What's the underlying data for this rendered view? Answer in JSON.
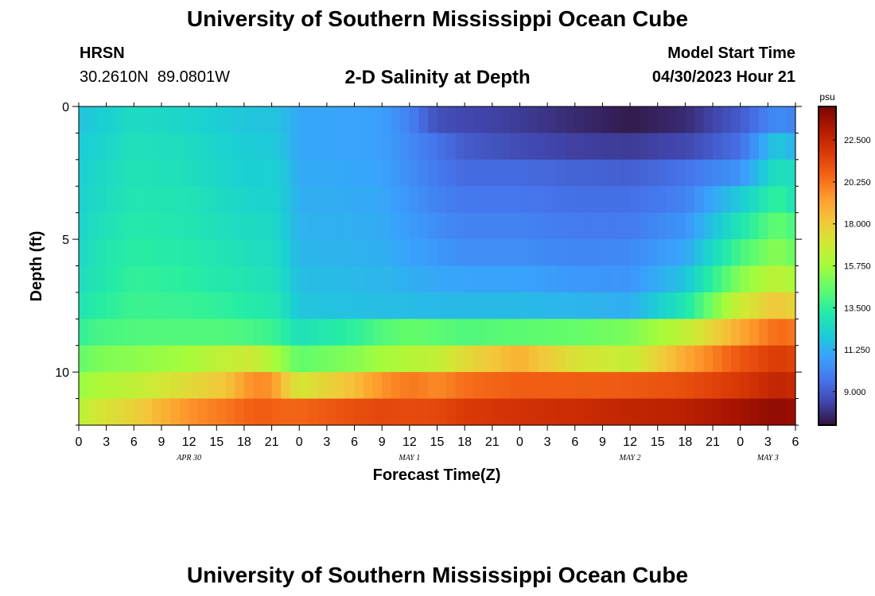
{
  "header": {
    "title": "University of Southern Mississippi Ocean Cube",
    "station": "HRSN",
    "coords": "30.2610N  89.0801W",
    "subtitle": "2-D Salinity at Depth",
    "model_start_label": "Model Start Time",
    "model_start_value": "04/30/2023 Hour 21"
  },
  "footer": {
    "title": "University of Southern Mississippi Ocean Cube"
  },
  "colors": {
    "colormap": [
      "#30123b",
      "#4145ab",
      "#4675ed",
      "#39a2fc",
      "#1bcfd4",
      "#24eca6",
      "#61fc6c",
      "#a4fc3b",
      "#d1e834",
      "#f3c63a",
      "#fe9b2d",
      "#f36315",
      "#d93806",
      "#b11901",
      "#7a0402"
    ]
  },
  "chart_data": {
    "type": "heatmap",
    "title": "2-D Salinity at Depth",
    "xlabel": "Forecast Time(Z)",
    "ylabel": "Depth (ft)",
    "y_range": [
      0,
      12
    ],
    "y_ticks": [
      "0",
      "5",
      "10"
    ],
    "y_tick_values": [
      0,
      5,
      10
    ],
    "x_hours": [
      0,
      78
    ],
    "x_tick_labels": [
      "0",
      "3",
      "6",
      "9",
      "12",
      "15",
      "18",
      "21",
      "0",
      "3",
      "6",
      "9",
      "12",
      "15",
      "18",
      "21",
      "0",
      "3",
      "6",
      "9",
      "12",
      "15",
      "18",
      "21",
      "0",
      "3",
      "6"
    ],
    "date_labels": [
      {
        "label": "APR 30",
        "hour": 12
      },
      {
        "label": "MAY 1",
        "hour": 36
      },
      {
        "label": "MAY 2",
        "hour": 60
      },
      {
        "label": "MAY 3",
        "hour": 75
      }
    ],
    "colorbar": {
      "unit": "psu",
      "range": [
        7.2,
        24.3
      ],
      "tick_values": [
        9.0,
        11.25,
        13.5,
        15.75,
        18.0,
        20.25,
        22.5
      ],
      "tick_labels": [
        "9.000",
        "11.250",
        "13.500",
        "15.750",
        "18.000",
        "20.250",
        "22.500"
      ]
    },
    "depth_layers": [
      0.5,
      1.5,
      2.5,
      3.5,
      4.5,
      5.5,
      6.5,
      7.5,
      8.5,
      9.5,
      10.5,
      11.5
    ],
    "time_keyframes": [
      0,
      2,
      6,
      12,
      16,
      19,
      21,
      22,
      24,
      30,
      33,
      36,
      39,
      42,
      48,
      54,
      60,
      66,
      72,
      76,
      78
    ],
    "salinity_keyframes": [
      [
        11.8,
        12.0,
        12.6,
        12.3,
        12.0,
        11.8,
        11.8,
        11.6,
        11.0,
        10.9,
        10.8,
        10.0,
        8.7,
        8.5,
        8.2,
        7.8,
        7.4,
        7.8,
        9.0,
        10.3,
        10.0
      ],
      [
        12.0,
        12.2,
        12.8,
        12.6,
        12.2,
        12.0,
        12.0,
        11.8,
        11.0,
        10.9,
        10.8,
        10.2,
        9.6,
        9.0,
        8.6,
        8.3,
        8.2,
        8.5,
        9.5,
        12.0,
        11.2
      ],
      [
        12.1,
        12.4,
        12.9,
        12.7,
        12.3,
        12.1,
        12.2,
        12.0,
        11.1,
        11.0,
        10.9,
        10.3,
        9.8,
        9.4,
        9.4,
        9.2,
        9.1,
        9.6,
        10.5,
        12.8,
        12.5
      ],
      [
        12.2,
        12.5,
        13.0,
        12.9,
        12.5,
        12.3,
        12.3,
        12.1,
        11.2,
        11.1,
        11.0,
        10.5,
        10.0,
        9.7,
        9.7,
        9.5,
        9.5,
        10.0,
        12.0,
        13.6,
        12.9
      ],
      [
        12.3,
        12.7,
        13.2,
        13.0,
        12.7,
        12.5,
        12.5,
        12.2,
        11.3,
        11.2,
        11.1,
        10.7,
        10.3,
        10.0,
        10.0,
        9.8,
        9.8,
        10.5,
        13.0,
        14.6,
        14.0
      ],
      [
        12.4,
        12.9,
        13.4,
        13.2,
        12.9,
        12.7,
        12.6,
        12.4,
        11.4,
        11.3,
        11.2,
        10.9,
        10.6,
        10.3,
        10.3,
        10.1,
        10.2,
        11.0,
        14.0,
        15.3,
        14.6
      ],
      [
        12.6,
        13.0,
        13.6,
        13.4,
        13.1,
        12.9,
        12.8,
        12.6,
        11.6,
        11.5,
        11.4,
        11.2,
        11.0,
        10.9,
        10.9,
        10.6,
        10.5,
        11.8,
        15.2,
        16.5,
        15.8
      ],
      [
        13.0,
        13.3,
        13.8,
        13.7,
        13.5,
        13.2,
        13.1,
        12.9,
        11.8,
        11.7,
        11.6,
        11.6,
        11.5,
        11.5,
        11.5,
        11.4,
        11.2,
        13.0,
        16.8,
        18.2,
        17.6
      ],
      [
        13.5,
        14.0,
        14.2,
        14.2,
        14.2,
        14.0,
        13.8,
        13.5,
        12.8,
        13.5,
        14.2,
        14.6,
        14.4,
        14.2,
        14.4,
        14.6,
        15.0,
        16.5,
        19.0,
        20.5,
        20.2
      ],
      [
        14.5,
        15.0,
        15.3,
        15.8,
        16.6,
        16.8,
        16.0,
        15.5,
        14.5,
        15.2,
        15.8,
        16.2,
        16.5,
        17.5,
        18.8,
        17.2,
        16.6,
        19.0,
        21.0,
        21.8,
        21.5
      ],
      [
        15.5,
        16.0,
        16.5,
        17.5,
        18.2,
        19.8,
        19.6,
        18.5,
        17.0,
        18.4,
        19.6,
        20.2,
        19.8,
        20.4,
        20.8,
        20.8,
        20.9,
        21.2,
        21.9,
        22.6,
        22.4
      ],
      [
        16.2,
        17.0,
        17.8,
        19.6,
        20.2,
        20.8,
        20.8,
        20.6,
        20.6,
        21.2,
        21.4,
        21.3,
        21.4,
        21.8,
        22.1,
        22.3,
        22.6,
        22.8,
        23.4,
        23.8,
        23.6
      ]
    ]
  }
}
